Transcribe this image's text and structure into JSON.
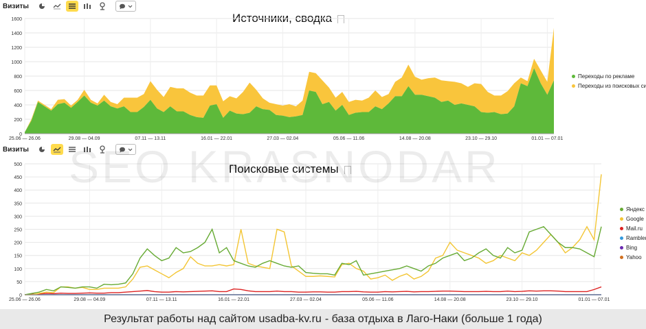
{
  "caption": {
    "before": "Результат работы над сайтом",
    "site": "usadba-kv.ru",
    "after": "- база отдыха в Лаго-Наки (больше 1 года)"
  },
  "watermark": "SEO KRASNODAR",
  "toolbar_top": {
    "label": "Визиты",
    "icons": [
      "pie-icon",
      "line-icon",
      "stacked-area-icon",
      "bar-icon",
      "map-pin-icon",
      "comment-icon"
    ]
  },
  "toolbar_bottom": {
    "label": "Визиты",
    "icons": [
      "pie-icon",
      "line-icon",
      "stacked-area-icon",
      "bar-icon",
      "map-pin-icon",
      "comment-icon"
    ]
  },
  "colors": {
    "green": "#5eb93a",
    "yellow": "#f9c53c",
    "yandex": "#66aa33",
    "google": "#f3c533",
    "mailru": "#dd2222",
    "rambler": "#3399dd",
    "bing": "#6a2ab0",
    "yahoo": "#d07020"
  },
  "chart_data": [
    {
      "type": "area",
      "title": "Источники, сводка",
      "stacked": true,
      "ylim": [
        0,
        1600
      ],
      "yticks": [
        0,
        200,
        400,
        600,
        800,
        1000,
        1200,
        1400,
        1600
      ],
      "xtick_labels": [
        "25.06 — 26.06",
        "29.08 — 04.09",
        "07.11 — 13.11",
        "16.01 — 22.01",
        "27.03 — 02.04",
        "05.06 — 11.06",
        "14.08 — 20.08",
        "23.10 — 29.10",
        "01.01 — 07.01"
      ],
      "xtick_index": [
        0,
        9,
        19,
        29,
        39,
        49,
        59,
        69,
        79
      ],
      "legend_position": "right",
      "series": [
        {
          "name": "Переходы по рекламе",
          "values": [
            20,
            180,
            440,
            380,
            320,
            410,
            430,
            360,
            440,
            530,
            430,
            390,
            460,
            380,
            350,
            380,
            300,
            300,
            370,
            470,
            350,
            300,
            380,
            310,
            310,
            260,
            230,
            220,
            390,
            410,
            220,
            320,
            280,
            270,
            290,
            380,
            340,
            330,
            260,
            250,
            230,
            240,
            260,
            600,
            580,
            410,
            440,
            320,
            400,
            260,
            290,
            300,
            300,
            380,
            340,
            420,
            520,
            520,
            660,
            540,
            540,
            520,
            500,
            440,
            460,
            400,
            420,
            400,
            380,
            300,
            290,
            300,
            270,
            280,
            380,
            700,
            660,
            910,
            700,
            540,
            740
          ]
        },
        {
          "name": "Переходы из поисковых систем",
          "values": [
            0,
            20,
            20,
            20,
            20,
            60,
            50,
            30,
            30,
            80,
            40,
            30,
            80,
            60,
            60,
            120,
            200,
            200,
            180,
            260,
            260,
            210,
            270,
            320,
            320,
            310,
            300,
            310,
            280,
            260,
            230,
            200,
            210,
            310,
            420,
            230,
            150,
            100,
            150,
            140,
            180,
            140,
            200,
            260,
            260,
            330,
            200,
            180,
            180,
            180,
            180,
            160,
            200,
            220,
            170,
            130,
            200,
            260,
            300,
            250,
            210,
            250,
            280,
            300,
            270,
            320,
            280,
            250,
            320,
            390,
            290,
            230,
            260,
            310,
            320,
            80,
            70,
            130,
            180,
            180,
            730
          ]
        }
      ]
    },
    {
      "type": "line",
      "title": "Поисковые системы",
      "ylim": [
        0,
        500
      ],
      "yticks": [
        0,
        50,
        100,
        150,
        200,
        250,
        300,
        350,
        400,
        450,
        500
      ],
      "xtick_labels": [
        "25.06 — 26.06",
        "29.08 — 04.09",
        "07.11 — 13.11",
        "16.01 — 22.01",
        "27.03 — 02.04",
        "05.06 — 11.06",
        "14.08 — 20.08",
        "23.10 — 29.10",
        "01.01 — 07.01"
      ],
      "xtick_index": [
        0,
        9,
        19,
        29,
        39,
        49,
        59,
        69,
        79
      ],
      "legend_position": "right",
      "series": [
        {
          "name": "Яндекс",
          "values": [
            0,
            5,
            10,
            20,
            15,
            30,
            28,
            25,
            30,
            30,
            25,
            40,
            38,
            40,
            45,
            80,
            140,
            175,
            150,
            130,
            140,
            180,
            160,
            165,
            180,
            200,
            250,
            160,
            180,
            130,
            120,
            110,
            105,
            120,
            130,
            120,
            110,
            105,
            110,
            85,
            82,
            80,
            80,
            75,
            120,
            115,
            130,
            75,
            80,
            85,
            90,
            95,
            100,
            110,
            100,
            90,
            110,
            120,
            140,
            150,
            160,
            130,
            140,
            160,
            175,
            150,
            140,
            180,
            160,
            170,
            240,
            250,
            260,
            230,
            200,
            180,
            180,
            175,
            160,
            145,
            260
          ]
        },
        {
          "name": "Google",
          "values": [
            0,
            0,
            5,
            10,
            8,
            30,
            30,
            25,
            28,
            20,
            20,
            25,
            25,
            25,
            30,
            60,
            105,
            110,
            95,
            80,
            65,
            85,
            100,
            145,
            120,
            110,
            110,
            115,
            110,
            115,
            250,
            120,
            110,
            105,
            100,
            250,
            240,
            110,
            90,
            70,
            70,
            72,
            70,
            68,
            115,
            120,
            100,
            90,
            60,
            65,
            75,
            55,
            70,
            80,
            60,
            70,
            90,
            140,
            150,
            200,
            170,
            160,
            150,
            140,
            120,
            130,
            150,
            140,
            130,
            160,
            150,
            170,
            200,
            230,
            200,
            160,
            180,
            210,
            260,
            210,
            460
          ]
        },
        {
          "name": "Mail.ru",
          "values": [
            0,
            2,
            3,
            5,
            4,
            6,
            5,
            5,
            6,
            7,
            6,
            6,
            8,
            8,
            10,
            12,
            14,
            16,
            12,
            10,
            10,
            12,
            11,
            12,
            13,
            14,
            15,
            12,
            12,
            22,
            20,
            15,
            12,
            12,
            12,
            14,
            12,
            12,
            10,
            10,
            11,
            11,
            10,
            10,
            12,
            12,
            13,
            11,
            10,
            10,
            12,
            11,
            12,
            13,
            11,
            12,
            12,
            13,
            14,
            14,
            13,
            12,
            12,
            12,
            13,
            12,
            12,
            14,
            12,
            13,
            15,
            14,
            15,
            15,
            14,
            12,
            12,
            12,
            12,
            20,
            30
          ]
        },
        {
          "name": "Rambler",
          "values": [
            0,
            0,
            0,
            0,
            0,
            0,
            0,
            0,
            0,
            0,
            0,
            0,
            0,
            0,
            0,
            0,
            0,
            0,
            0,
            0,
            0,
            0,
            0,
            0,
            0,
            0,
            0,
            0,
            0,
            0,
            0,
            0,
            0,
            0,
            0,
            0,
            0,
            0,
            0,
            0,
            0,
            0,
            0,
            0,
            0,
            0,
            0,
            0,
            0,
            0,
            0,
            0,
            0,
            0,
            0,
            0,
            0,
            0,
            0,
            0,
            0,
            0,
            0,
            0,
            0,
            0,
            0,
            0,
            0,
            0,
            0,
            0,
            0,
            0,
            0,
            0,
            0,
            0,
            0,
            0,
            0
          ]
        },
        {
          "name": "Bing",
          "values": [
            0,
            0,
            0,
            0,
            0,
            0,
            0,
            0,
            0,
            0,
            0,
            0,
            0,
            0,
            0,
            0,
            0,
            0,
            0,
            0,
            0,
            0,
            0,
            0,
            0,
            0,
            0,
            0,
            0,
            0,
            0,
            0,
            0,
            0,
            0,
            0,
            0,
            0,
            0,
            0,
            0,
            0,
            0,
            0,
            0,
            0,
            0,
            0,
            0,
            0,
            0,
            0,
            0,
            0,
            0,
            0,
            0,
            0,
            0,
            0,
            0,
            0,
            0,
            0,
            0,
            0,
            0,
            0,
            0,
            0,
            0,
            0,
            0,
            0,
            0,
            0,
            0,
            0,
            0,
            0,
            0
          ]
        },
        {
          "name": "Yahoo",
          "values": [
            0,
            0,
            0,
            0,
            0,
            0,
            0,
            0,
            0,
            0,
            0,
            0,
            0,
            0,
            0,
            0,
            0,
            0,
            0,
            0,
            0,
            0,
            0,
            0,
            0,
            0,
            0,
            0,
            0,
            0,
            0,
            0,
            0,
            0,
            0,
            0,
            0,
            0,
            0,
            0,
            0,
            0,
            0,
            0,
            0,
            0,
            0,
            0,
            0,
            0,
            0,
            0,
            0,
            0,
            0,
            0,
            0,
            0,
            0,
            0,
            0,
            0,
            0,
            0,
            0,
            0,
            0,
            0,
            0,
            0,
            0,
            0,
            0,
            0,
            0,
            0,
            0,
            0,
            0,
            0,
            0
          ]
        }
      ]
    }
  ]
}
